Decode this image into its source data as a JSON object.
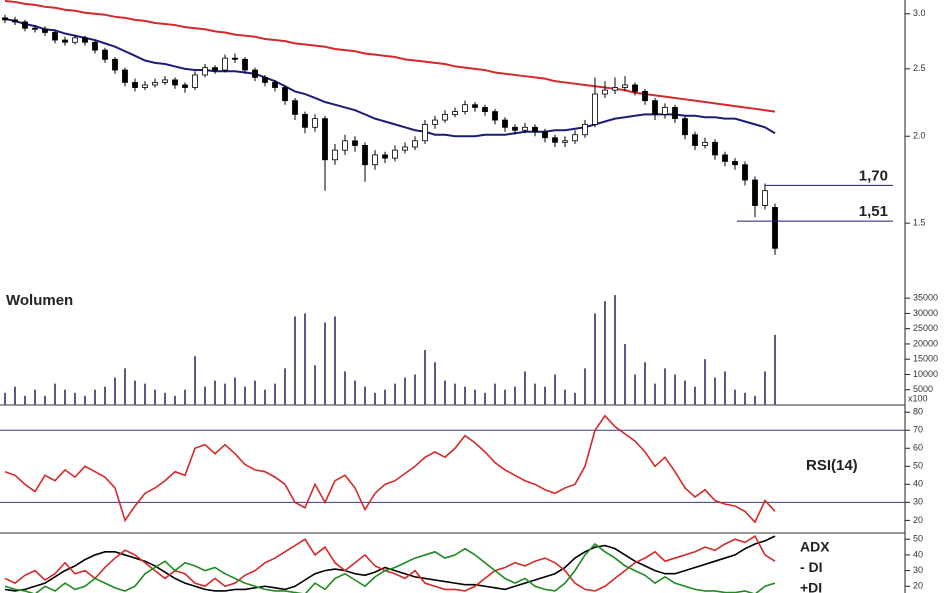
{
  "chart_data": [
    {
      "type": "candlestick",
      "log_scale": true,
      "ylim": [
        1.21,
        3.14
      ],
      "yticks": [
        1.5,
        {
          "value": 2,
          "label": "2.0"
        },
        2.5,
        {
          "value": 3,
          "label": "3.0"
        }
      ],
      "open": [
        2.96,
        2.94,
        2.92,
        2.86,
        2.85,
        2.82,
        2.75,
        2.73,
        2.77,
        2.73,
        2.66,
        2.58,
        2.49,
        2.39,
        2.35,
        2.37,
        2.39,
        2.41,
        2.37,
        2.35,
        2.45,
        2.51,
        2.49,
        2.59,
        2.58,
        2.49,
        2.43,
        2.39,
        2.35,
        2.25,
        2.15,
        2.06,
        2.12,
        1.85,
        1.91,
        1.97,
        1.94,
        1.82,
        1.88,
        1.86,
        1.91,
        1.93,
        1.97,
        2.08,
        2.11,
        2.15,
        2.17,
        2.22,
        2.2,
        2.17,
        2.11,
        2.06,
        2.04,
        2.06,
        2.03,
        1.99,
        1.96,
        1.97,
        2.01,
        2.08,
        2.3,
        2.33,
        2.35,
        2.37,
        2.32,
        2.25,
        2.15,
        2.2,
        2.12,
        2.01,
        1.94,
        1.96,
        1.88,
        1.84,
        1.82,
        1.73,
        1.59,
        1.58
      ],
      "high": [
        2.99,
        2.97,
        2.94,
        2.89,
        2.88,
        2.84,
        2.78,
        2.8,
        2.79,
        2.75,
        2.68,
        2.6,
        2.51,
        2.42,
        2.4,
        2.42,
        2.44,
        2.43,
        2.39,
        2.48,
        2.54,
        2.53,
        2.62,
        2.63,
        2.6,
        2.51,
        2.45,
        2.41,
        2.37,
        2.27,
        2.17,
        2.15,
        2.14,
        1.95,
        2.01,
        2.0,
        1.96,
        1.91,
        1.9,
        1.94,
        1.96,
        2.0,
        2.11,
        2.14,
        2.18,
        2.2,
        2.25,
        2.24,
        2.22,
        2.19,
        2.13,
        2.08,
        2.09,
        2.08,
        2.05,
        2.01,
        2.0,
        2.04,
        2.11,
        2.43,
        2.4,
        2.43,
        2.44,
        2.39,
        2.34,
        2.27,
        2.23,
        2.22,
        2.14,
        2.03,
        1.99,
        1.98,
        1.9,
        1.86,
        1.84,
        1.75,
        1.71,
        1.6
      ],
      "low": [
        2.91,
        2.89,
        2.83,
        2.82,
        2.79,
        2.72,
        2.7,
        2.71,
        2.7,
        2.63,
        2.55,
        2.46,
        2.36,
        2.32,
        2.33,
        2.35,
        2.37,
        2.34,
        2.31,
        2.33,
        2.43,
        2.46,
        2.47,
        2.55,
        2.46,
        2.4,
        2.36,
        2.32,
        2.22,
        2.11,
        2.02,
        2.03,
        1.67,
        1.82,
        1.88,
        1.9,
        1.72,
        1.79,
        1.83,
        1.84,
        1.89,
        1.91,
        1.95,
        2.05,
        2.09,
        2.13,
        2.15,
        2.17,
        2.14,
        2.08,
        2.03,
        2.01,
        2.02,
        2.0,
        1.96,
        1.93,
        1.93,
        1.95,
        1.99,
        2.06,
        2.27,
        2.3,
        2.32,
        2.29,
        2.22,
        2.11,
        2.12,
        2.09,
        1.98,
        1.91,
        1.92,
        1.85,
        1.81,
        1.79,
        1.7,
        1.53,
        1.57,
        1.35
      ],
      "close": [
        2.94,
        2.92,
        2.86,
        2.85,
        2.82,
        2.75,
        2.73,
        2.77,
        2.73,
        2.66,
        2.58,
        2.49,
        2.39,
        2.35,
        2.37,
        2.39,
        2.41,
        2.37,
        2.35,
        2.45,
        2.51,
        2.49,
        2.59,
        2.58,
        2.49,
        2.43,
        2.39,
        2.35,
        2.25,
        2.15,
        2.06,
        2.12,
        1.85,
        1.91,
        1.97,
        1.94,
        1.82,
        1.88,
        1.86,
        1.91,
        1.93,
        1.97,
        2.08,
        2.11,
        2.15,
        2.17,
        2.22,
        2.2,
        2.17,
        2.11,
        2.06,
        2.04,
        2.06,
        2.03,
        1.99,
        1.96,
        1.97,
        2.01,
        2.08,
        2.3,
        2.33,
        2.35,
        2.37,
        2.32,
        2.25,
        2.15,
        2.2,
        2.12,
        2.01,
        1.94,
        1.96,
        1.88,
        1.84,
        1.82,
        1.73,
        1.59,
        1.67,
        1.38
      ],
      "series": [
        {
          "color": "#d42a2a",
          "values": [
            3.13,
            3.12,
            3.1,
            3.09,
            3.07,
            3.06,
            3.04,
            3.03,
            3.01,
            3.0,
            2.99,
            2.97,
            2.96,
            2.94,
            2.93,
            2.91,
            2.9,
            2.89,
            2.87,
            2.86,
            2.85,
            2.83,
            2.82,
            2.8,
            2.79,
            2.78,
            2.76,
            2.75,
            2.74,
            2.72,
            2.71,
            2.7,
            2.69,
            2.67,
            2.66,
            2.65,
            2.63,
            2.62,
            2.61,
            2.6,
            2.58,
            2.57,
            2.56,
            2.55,
            2.54,
            2.52,
            2.51,
            2.5,
            2.49,
            2.47,
            2.46,
            2.45,
            2.44,
            2.43,
            2.42,
            2.4,
            2.39,
            2.38,
            2.37,
            2.36,
            2.35,
            2.34,
            2.33,
            2.31,
            2.3,
            2.29,
            2.28,
            2.27,
            2.26,
            2.25,
            2.24,
            2.23,
            2.22,
            2.21,
            2.2,
            2.19,
            2.18,
            2.17
          ]
        },
        {
          "color": "#1c1c7a",
          "values": [
            2.95,
            2.93,
            2.9,
            2.88,
            2.85,
            2.84,
            2.81,
            2.79,
            2.77,
            2.75,
            2.72,
            2.69,
            2.65,
            2.61,
            2.57,
            2.55,
            2.54,
            2.52,
            2.5,
            2.49,
            2.49,
            2.48,
            2.48,
            2.48,
            2.47,
            2.46,
            2.43,
            2.4,
            2.36,
            2.32,
            2.3,
            2.27,
            2.24,
            2.22,
            2.2,
            2.18,
            2.15,
            2.12,
            2.1,
            2.08,
            2.06,
            2.04,
            2.03,
            2.01,
            2.01,
            2.0,
            2.0,
            2.0,
            2.01,
            2.01,
            2.01,
            2.02,
            2.03,
            2.03,
            2.03,
            2.04,
            2.04,
            2.05,
            2.06,
            2.08,
            2.1,
            2.12,
            2.13,
            2.14,
            2.15,
            2.15,
            2.15,
            2.15,
            2.14,
            2.14,
            2.13,
            2.13,
            2.12,
            2.12,
            2.1,
            2.08,
            2.06,
            2.02
          ]
        }
      ],
      "annotations": [
        {
          "value": 1.7,
          "label": "1,70"
        },
        {
          "value": 1.51,
          "label": "1,51"
        }
      ]
    },
    {
      "type": "bar",
      "title": "Wolumen",
      "ylim": [
        0,
        38000
      ],
      "yticks": [
        5000,
        10000,
        15000,
        20000,
        25000,
        30000,
        35000
      ],
      "unit_label": "x100",
      "color": "#5a5a86",
      "values": [
        4000,
        6000,
        3000,
        5000,
        3000,
        7000,
        5000,
        4000,
        3000,
        5000,
        6000,
        9000,
        12000,
        8000,
        7000,
        5000,
        4000,
        3000,
        5000,
        16000,
        6000,
        8000,
        7000,
        9000,
        6000,
        8000,
        5000,
        7000,
        12000,
        29000,
        30000,
        13000,
        27000,
        29000,
        11000,
        8000,
        6000,
        4000,
        5000,
        7000,
        9000,
        10000,
        18000,
        14000,
        8000,
        7000,
        6000,
        5000,
        4000,
        7000,
        5000,
        6000,
        11000,
        7000,
        6000,
        10000,
        5000,
        4000,
        12000,
        30000,
        34000,
        36000,
        20000,
        10000,
        14000,
        7000,
        12000,
        10000,
        8000,
        6000,
        15000,
        9000,
        11000,
        5000,
        4000,
        3000,
        11000,
        23000
      ]
    },
    {
      "type": "line",
      "title": "RSI(14)",
      "ylim": [
        13,
        84
      ],
      "yticks": [
        20,
        30,
        40,
        50,
        60,
        70,
        80
      ],
      "ref_lines": [
        30,
        70
      ],
      "series": [
        {
          "color": "#d42a2a",
          "values": [
            47,
            45,
            40,
            36,
            45,
            42,
            48,
            44,
            50,
            47,
            44,
            38,
            20,
            28,
            35,
            38,
            42,
            47,
            45,
            60,
            62,
            57,
            62,
            57,
            51,
            48,
            47,
            44,
            40,
            30,
            27,
            40,
            30,
            42,
            45,
            38,
            26,
            35,
            40,
            42,
            46,
            50,
            55,
            58,
            55,
            60,
            67,
            63,
            58,
            52,
            48,
            45,
            42,
            40,
            37,
            35,
            38,
            40,
            50,
            70,
            78,
            72,
            68,
            64,
            58,
            50,
            55,
            47,
            38,
            33,
            37,
            31,
            29,
            28,
            25,
            19,
            31,
            25
          ]
        }
      ]
    },
    {
      "type": "line",
      "ylim": [
        15.7,
        54
      ],
      "yticks": [
        20,
        30,
        40,
        50
      ],
      "series": [
        {
          "name": "ADX",
          "color": "#000000",
          "values": [
            18,
            17,
            18,
            20,
            22,
            26,
            30,
            33,
            37,
            40,
            42,
            42,
            40,
            38,
            36,
            33,
            29,
            25,
            22,
            20,
            18,
            17,
            17,
            18,
            18,
            19,
            20,
            19,
            18,
            20,
            24,
            28,
            30,
            31,
            30,
            28,
            27,
            29,
            32,
            30,
            28,
            26,
            25,
            24,
            23,
            22,
            21,
            21,
            20,
            19,
            18,
            20,
            22,
            24,
            26,
            28,
            32,
            38,
            42,
            45,
            46,
            44,
            40,
            36,
            33,
            30,
            28,
            28,
            30,
            32,
            34,
            36,
            38,
            40,
            44,
            47,
            49,
            52
          ]
        },
        {
          "name": "- DI",
          "color": "#d42a2a",
          "values": [
            25,
            22,
            27,
            30,
            24,
            28,
            35,
            28,
            30,
            25,
            32,
            38,
            43,
            40,
            35,
            30,
            25,
            30,
            28,
            22,
            20,
            25,
            20,
            22,
            27,
            30,
            35,
            38,
            42,
            46,
            50,
            40,
            45,
            35,
            30,
            35,
            40,
            33,
            30,
            28,
            25,
            30,
            22,
            20,
            18,
            18,
            17,
            20,
            25,
            30,
            32,
            35,
            33,
            36,
            38,
            35,
            30,
            22,
            18,
            17,
            20,
            25,
            30,
            35,
            38,
            42,
            36,
            38,
            40,
            42,
            45,
            43,
            47,
            50,
            48,
            52,
            40,
            36
          ]
        },
        {
          "name": "+DI",
          "color": "#1f8a1f",
          "values": [
            20,
            18,
            17,
            15,
            20,
            17,
            22,
            18,
            20,
            25,
            22,
            19,
            17,
            20,
            28,
            32,
            36,
            30,
            35,
            33,
            30,
            32,
            28,
            25,
            22,
            20,
            18,
            17,
            17,
            16,
            15,
            22,
            18,
            25,
            28,
            24,
            20,
            26,
            30,
            32,
            35,
            38,
            40,
            42,
            38,
            40,
            44,
            40,
            35,
            30,
            25,
            22,
            25,
            20,
            18,
            17,
            22,
            30,
            40,
            47,
            42,
            38,
            33,
            30,
            27,
            22,
            26,
            22,
            20,
            18,
            17,
            17,
            16,
            16,
            17,
            15,
            20,
            22
          ]
        }
      ]
    }
  ]
}
